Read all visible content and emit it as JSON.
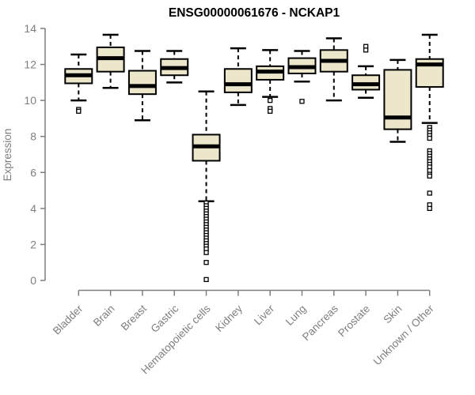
{
  "chart_data": {
    "type": "boxplot",
    "title": "ENSG00000061676 - NCKAP1",
    "ylabel": "Expression",
    "xlabel": "",
    "ylim": [
      0,
      14
    ],
    "yticks": [
      0,
      2,
      4,
      6,
      8,
      10,
      12,
      14
    ],
    "grid": false,
    "legend": "none",
    "categories": [
      "Bladder",
      "Brain",
      "Breast",
      "Gastric",
      "Hematopoietic cells",
      "Kidney",
      "Liver",
      "Lung",
      "Pancreas",
      "Prostate",
      "Skin",
      "Unknown / Other"
    ],
    "series": [
      {
        "name": "Bladder",
        "whisker_low": 10.0,
        "q1": 10.95,
        "median": 11.4,
        "q3": 11.75,
        "whisker_high": 12.55,
        "outliers": [
          9.5,
          9.4
        ]
      },
      {
        "name": "Brain",
        "whisker_low": 10.7,
        "q1": 11.6,
        "median": 12.35,
        "q3": 12.95,
        "whisker_high": 13.65,
        "outliers": []
      },
      {
        "name": "Breast",
        "whisker_low": 8.9,
        "q1": 10.35,
        "median": 10.8,
        "q3": 11.65,
        "whisker_high": 12.75,
        "outliers": []
      },
      {
        "name": "Gastric",
        "whisker_low": 11.0,
        "q1": 11.4,
        "median": 11.8,
        "q3": 12.3,
        "whisker_high": 12.75,
        "outliers": []
      },
      {
        "name": "Hematopoietic cells",
        "whisker_low": 4.4,
        "q1": 6.65,
        "median": 7.45,
        "q3": 8.1,
        "whisker_high": 10.5,
        "outliers": [
          4.3,
          4.15,
          4.0,
          3.85,
          3.7,
          3.55,
          3.4,
          3.25,
          3.1,
          2.95,
          2.8,
          2.65,
          2.5,
          2.35,
          2.2,
          2.05,
          1.9,
          1.75,
          1.55,
          1.0,
          0.05
        ]
      },
      {
        "name": "Kidney",
        "whisker_low": 9.75,
        "q1": 10.45,
        "median": 10.9,
        "q3": 11.75,
        "whisker_high": 12.9,
        "outliers": []
      },
      {
        "name": "Liver",
        "whisker_low": 10.2,
        "q1": 11.15,
        "median": 11.6,
        "q3": 11.9,
        "whisker_high": 12.8,
        "outliers": [
          10.0,
          9.55,
          9.4
        ]
      },
      {
        "name": "Lung",
        "whisker_low": 11.05,
        "q1": 11.5,
        "median": 11.85,
        "q3": 12.35,
        "whisker_high": 12.75,
        "outliers": [
          9.95
        ]
      },
      {
        "name": "Pancreas",
        "whisker_low": 10.0,
        "q1": 11.6,
        "median": 12.2,
        "q3": 12.8,
        "whisker_high": 13.45,
        "outliers": []
      },
      {
        "name": "Prostate",
        "whisker_low": 10.15,
        "q1": 10.6,
        "median": 10.9,
        "q3": 11.4,
        "whisker_high": 11.9,
        "outliers": [
          13.0,
          12.8
        ]
      },
      {
        "name": "Skin",
        "whisker_low": 7.7,
        "q1": 8.4,
        "median": 9.05,
        "q3": 11.7,
        "whisker_high": 12.25,
        "outliers": []
      },
      {
        "name": "Unknown / Other",
        "whisker_low": 8.75,
        "q1": 10.75,
        "median": 12.0,
        "q3": 12.3,
        "whisker_high": 13.65,
        "outliers": [
          8.5,
          8.35,
          8.2,
          8.05,
          7.9,
          7.2,
          7.05,
          6.9,
          6.75,
          6.6,
          6.45,
          6.3,
          6.1,
          5.9,
          5.8,
          4.85,
          4.2,
          4.0
        ]
      }
    ],
    "style": {
      "box_fill": "#ECE6CB",
      "box_stroke": "#000000",
      "median_color": "#000000",
      "whisker_color": "#000000",
      "outlier_shape": "open-square",
      "axis_color": "#7E7E7E",
      "title_color": "#000000"
    }
  }
}
